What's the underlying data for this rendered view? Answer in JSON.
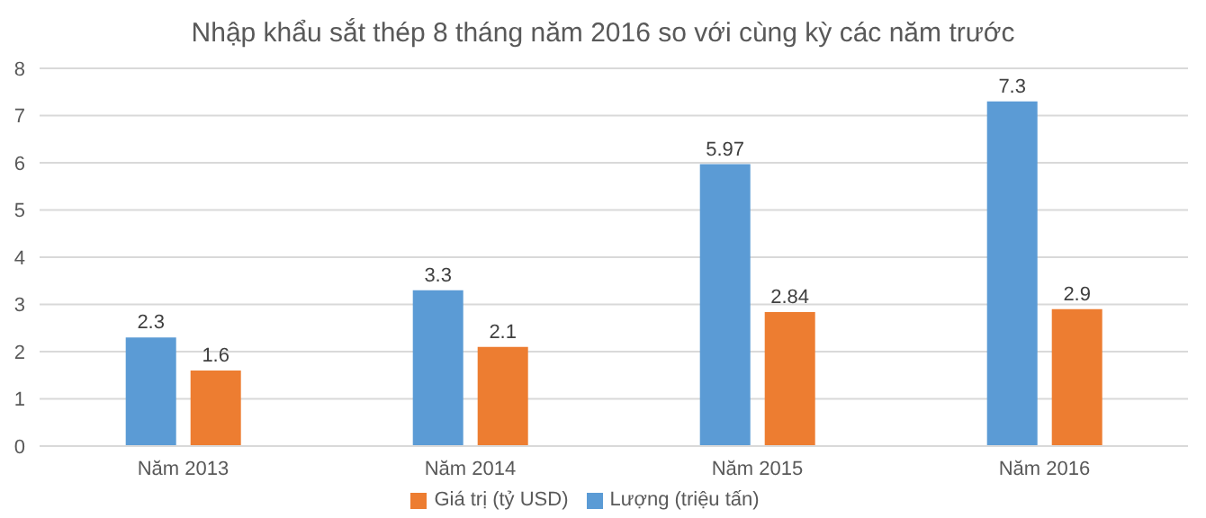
{
  "chart_data": {
    "type": "bar",
    "title": "Nhập khẩu sắt thép 8 tháng năm 2016 so với cùng kỳ các năm trước",
    "categories": [
      "Năm 2013",
      "Năm 2014",
      "Năm 2015",
      "Năm 2016"
    ],
    "series": [
      {
        "name": "Lượng (triệu tấn)",
        "color": "#5b9bd5",
        "values": [
          2.3,
          3.3,
          5.97,
          7.3
        ]
      },
      {
        "name": "Giá trị (tỷ USD)",
        "color": "#ed7d31",
        "values": [
          1.6,
          2.1,
          2.84,
          2.9
        ]
      }
    ],
    "ylim": [
      0,
      8
    ],
    "yticks": [
      0,
      1,
      2,
      3,
      4,
      5,
      6,
      7,
      8
    ],
    "grid": "y",
    "legend": "bottom",
    "data_labels": true
  }
}
